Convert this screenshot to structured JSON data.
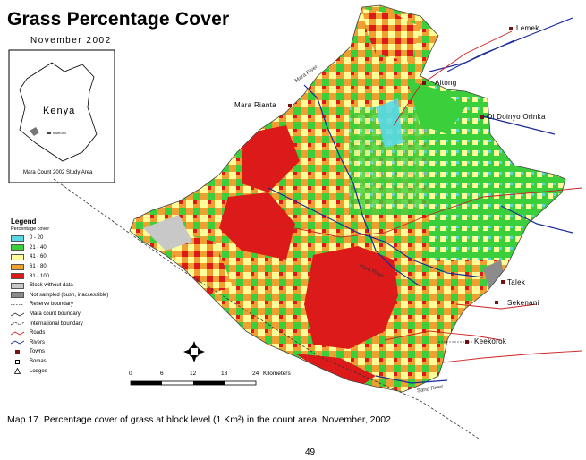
{
  "header": {
    "title": "Grass Percentage Cover",
    "subtitle": "November 2002"
  },
  "inset": {
    "country": "Kenya",
    "caption": "Mara Count 2002 Study Area"
  },
  "legend": {
    "title": "Legend",
    "subtitle": "Percentage cover",
    "classes": [
      {
        "label": "0 - 20",
        "color": "#5ad8e6"
      },
      {
        "label": "21 - 40",
        "color": "#3ccf3c"
      },
      {
        "label": "41 - 60",
        "color": "#ffff99"
      },
      {
        "label": "61 - 80",
        "color": "#f0a030"
      },
      {
        "label": "81 - 100",
        "color": "#dd1a1a"
      },
      {
        "label": "Block without data",
        "color": "#c8c8c8"
      },
      {
        "label": "Not sampled (bush, inaccessible)",
        "color": "#8c8c8c"
      }
    ],
    "lines": [
      {
        "label": "Reserve boundary",
        "icon": "reserve-boundary-line"
      },
      {
        "label": "Mara count boundary",
        "icon": "count-boundary-line"
      },
      {
        "label": "International boundary",
        "icon": "international-boundary-line"
      },
      {
        "label": "Roads",
        "icon": "road-line",
        "color": "#cc2222"
      },
      {
        "label": "Rivers",
        "icon": "river-line",
        "color": "#1a2a9a"
      }
    ],
    "points": [
      {
        "label": "Towns",
        "icon": "town-square-icon",
        "color": "#7a1010"
      },
      {
        "label": "Bomas",
        "icon": "boma-square-icon"
      },
      {
        "label": "Lodges",
        "icon": "lodge-triangle-icon"
      }
    ]
  },
  "places": [
    {
      "name": "Lemek"
    },
    {
      "name": "Aitong"
    },
    {
      "name": "Mara Rianta"
    },
    {
      "name": "Ol Doinyo Orinka"
    },
    {
      "name": "Talek"
    },
    {
      "name": "Sekenani"
    },
    {
      "name": "Keekorok"
    }
  ],
  "rivers": [
    {
      "name": "Mara River"
    },
    {
      "name": "Mara River"
    },
    {
      "name": "Sand River"
    }
  ],
  "scale_bar": {
    "ticks": [
      "0",
      "6",
      "12",
      "18",
      "24"
    ],
    "unit": "Kilometers"
  },
  "caption": "Map 17.  Percentage cover of grass at block level (1 Km²) in the count area, November, 2002.",
  "page_number": "49"
}
